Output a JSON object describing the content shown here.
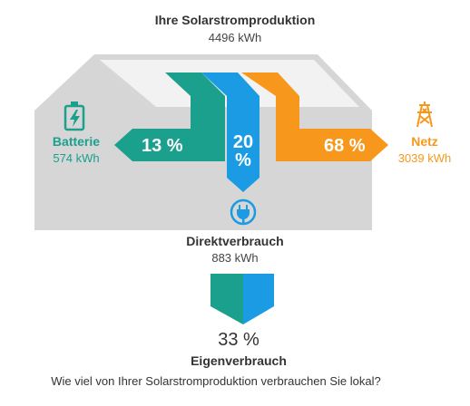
{
  "colors": {
    "battery": "#1aa08c",
    "direct": "#1a9be3",
    "grid": "#f7981d",
    "house": "#d6d6d6",
    "house_light": "#e8e8e8",
    "roof_panel": "#f2f2f2"
  },
  "icons": {
    "battery": "battery-charging-icon",
    "grid": "power-tower-icon",
    "direct": "plug-icon"
  },
  "production": {
    "title": "Ihre Solarstromproduktion",
    "value": "4496 kWh"
  },
  "battery": {
    "label": "Batterie",
    "value": "574 kWh",
    "percent": "13 %"
  },
  "direct": {
    "label": "Direktverbrauch",
    "value": "883 kWh",
    "percent_num": "20",
    "percent_sign": "%"
  },
  "grid": {
    "label": "Netz",
    "value": "3039 kWh",
    "percent": "68 %"
  },
  "self": {
    "percent": "33 %",
    "label": "Eigenverbrauch"
  },
  "question": "Wie viel von Ihrer Solarstromproduktion verbrauchen Sie lokal?"
}
